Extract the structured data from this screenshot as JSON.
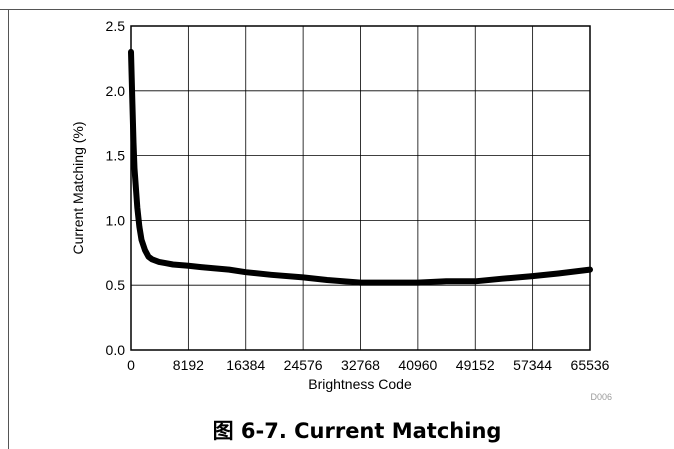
{
  "chart_data": {
    "type": "line",
    "title": "",
    "xlabel": "Brightness Code",
    "ylabel": "Current Matching (%)",
    "xlim": [
      0,
      65536
    ],
    "ylim": [
      0,
      2.5
    ],
    "x_ticks": [
      0,
      8192,
      16384,
      24576,
      32768,
      40960,
      49152,
      57344,
      65536
    ],
    "y_ticks": [
      0.0,
      0.5,
      1.0,
      1.5,
      2.0,
      2.5
    ],
    "x_tick_labels": [
      "0",
      "8192",
      "16384",
      "24576",
      "32768",
      "40960",
      "49152",
      "57344",
      "65536"
    ],
    "y_tick_labels": [
      "0.0",
      "0.5",
      "1.0",
      "1.5",
      "2.0",
      "2.5"
    ],
    "grid": true,
    "legend": "none",
    "series_color": "#000000",
    "series": [
      {
        "x": [
          0,
          100,
          200,
          350,
          500,
          700,
          900,
          1200,
          1500,
          2000,
          2500,
          3000,
          4000,
          5000,
          6000,
          8192,
          10000,
          12000,
          14000,
          16384,
          20000,
          24576,
          28000,
          32768,
          36000,
          40960,
          45000,
          49152,
          53000,
          57344,
          61000,
          65536
        ],
        "y": [
          2.3,
          2.1,
          1.9,
          1.6,
          1.4,
          1.25,
          1.1,
          0.95,
          0.85,
          0.77,
          0.72,
          0.7,
          0.68,
          0.67,
          0.66,
          0.65,
          0.64,
          0.63,
          0.62,
          0.6,
          0.58,
          0.56,
          0.54,
          0.52,
          0.52,
          0.52,
          0.53,
          0.53,
          0.55,
          0.57,
          0.59,
          0.62
        ]
      }
    ],
    "figure_id": "D006"
  },
  "caption": "图 6-7. Current Matching"
}
